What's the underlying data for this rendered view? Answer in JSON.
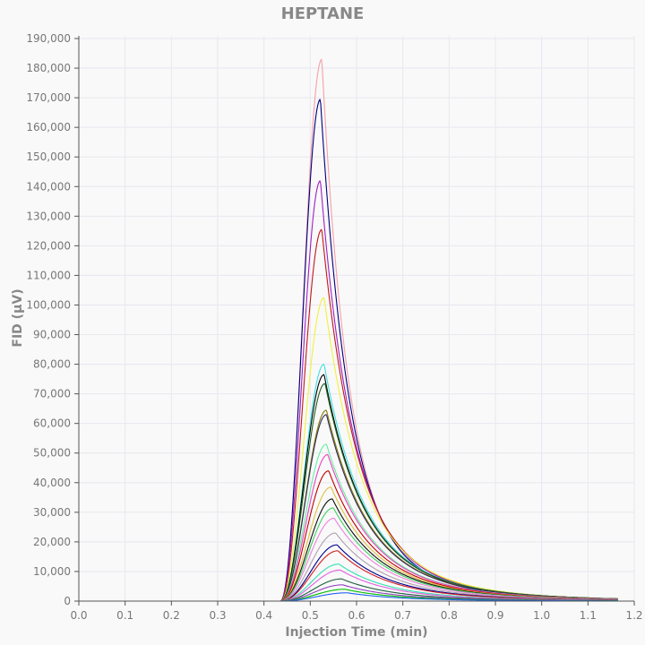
{
  "chart_data": {
    "type": "line",
    "title": "HEPTANE",
    "xlabel": "Injection Time (min)",
    "ylabel": "FID (µV)",
    "xlim": [
      0,
      1.2
    ],
    "ylim": [
      0,
      190000
    ],
    "grid": true,
    "legend": "none",
    "x_ticks": [
      "0.0",
      "0.1",
      "0.2",
      "0.3",
      "0.4",
      "0.5",
      "0.6",
      "0.7",
      "0.8",
      "0.9",
      "1.0",
      "1.1",
      "1.2"
    ],
    "y_ticks": [
      "0",
      "10,000",
      "20,000",
      "30,000",
      "40,000",
      "50,000",
      "60,000",
      "70,000",
      "80,000",
      "90,000",
      "100,000",
      "110,000",
      "120,000",
      "130,000",
      "140,000",
      "150,000",
      "160,000",
      "170,000",
      "180,000",
      "190,000"
    ],
    "x_range_data": [
      0,
      1.165
    ],
    "series": [
      {
        "peak_x": 0.525,
        "peak_y": 183000,
        "color": "#f4a0a8"
      },
      {
        "peak_x": 0.522,
        "peak_y": 169500,
        "color": "#000080"
      },
      {
        "peak_x": 0.522,
        "peak_y": 142000,
        "color": "#a020c0"
      },
      {
        "peak_x": 0.525,
        "peak_y": 125500,
        "color": "#c01818"
      },
      {
        "peak_x": 0.53,
        "peak_y": 102500,
        "color": "#f0f040"
      },
      {
        "peak_x": 0.53,
        "peak_y": 80000,
        "color": "#40e0e0"
      },
      {
        "peak_x": 0.53,
        "peak_y": 76500,
        "color": "#000000"
      },
      {
        "peak_x": 0.532,
        "peak_y": 73500,
        "color": "#206020"
      },
      {
        "peak_x": 0.535,
        "peak_y": 64500,
        "color": "#8a7a00"
      },
      {
        "peak_x": 0.535,
        "peak_y": 63000,
        "color": "#303060"
      },
      {
        "peak_x": 0.535,
        "peak_y": 53000,
        "color": "#60f0a0"
      },
      {
        "peak_x": 0.538,
        "peak_y": 49500,
        "color": "#f040c0"
      },
      {
        "peak_x": 0.54,
        "peak_y": 44000,
        "color": "#c00000"
      },
      {
        "peak_x": 0.545,
        "peak_y": 38500,
        "color": "#e0c040"
      },
      {
        "peak_x": 0.548,
        "peak_y": 34500,
        "color": "#101010"
      },
      {
        "peak_x": 0.55,
        "peak_y": 31500,
        "color": "#40d060"
      },
      {
        "peak_x": 0.552,
        "peak_y": 28000,
        "color": "#f080e0"
      },
      {
        "peak_x": 0.555,
        "peak_y": 23000,
        "color": "#b0a0b0"
      },
      {
        "peak_x": 0.558,
        "peak_y": 19000,
        "color": "#000090"
      },
      {
        "peak_x": 0.56,
        "peak_y": 17000,
        "color": "#d02020"
      },
      {
        "peak_x": 0.562,
        "peak_y": 12500,
        "color": "#30e0b0"
      },
      {
        "peak_x": 0.565,
        "peak_y": 10500,
        "color": "#e060e0"
      },
      {
        "peak_x": 0.568,
        "peak_y": 7500,
        "color": "#206040"
      },
      {
        "peak_x": 0.57,
        "peak_y": 5500,
        "color": "#9040c0"
      },
      {
        "peak_x": 0.575,
        "peak_y": 4000,
        "color": "#00c000"
      },
      {
        "peak_x": 0.58,
        "peak_y": 2800,
        "color": "#2060f0"
      }
    ]
  }
}
